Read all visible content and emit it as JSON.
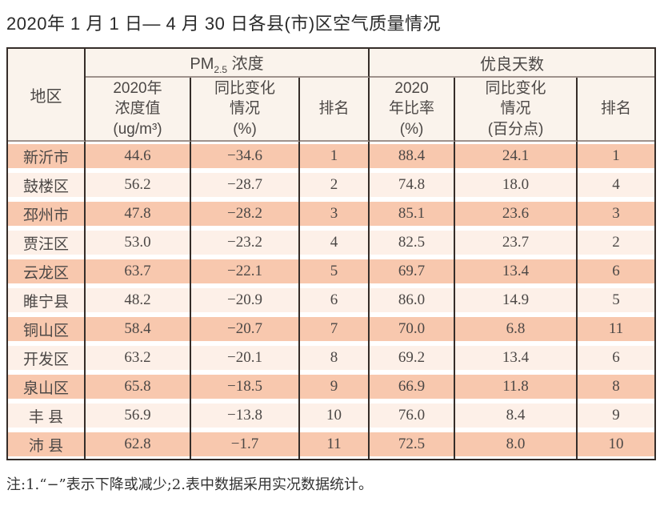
{
  "page": {
    "title": "2020年 1 月 1 日— 4 月 30 日各县(市)区空气质量情况",
    "note": "注:1.“−”表示下降或减少;2.表中数据采用实况数据统计。"
  },
  "colors": {
    "row_odd": "#f8c8ae",
    "row_even": "#fdf0e8",
    "header_bg": "#faf3ec",
    "border_dark": "#352d29",
    "border_gray": "#9e928c",
    "text": "#4c4846",
    "title_text": "#2a2a2a"
  },
  "table": {
    "area_header": "地区",
    "group_pm": {
      "prefix": "PM",
      "sub": "2.5",
      "suffix": " 浓度"
    },
    "group_days": "优良天数",
    "sub_headers": {
      "pm_value": "2020年\n浓度值\n(ug/m³)",
      "pm_change": "同比变化\n情况\n(%)",
      "pm_rank": "排名",
      "days_rate": "2020\n年比率\n(%)",
      "days_change": "同比变化\n情况\n(百分点)",
      "days_rank": "排名"
    }
  },
  "chart_data": {
    "type": "table",
    "title": "2020年 1 月 1 日— 4 月 30 日各县(市)区空气质量情况",
    "column_groups": [
      {
        "label": "地区",
        "span": 1
      },
      {
        "label": "PM2.5浓度",
        "span": 3
      },
      {
        "label": "优良天数",
        "span": 3
      }
    ],
    "columns": [
      "地区",
      "2020年浓度值(ug/m³)",
      "同比变化情况(%)",
      "排名",
      "2020年比率(%)",
      "同比变化情况(百分点)",
      "排名"
    ],
    "rows": [
      [
        "新沂市",
        "44.6",
        "−34.6",
        "1",
        "88.4",
        "24.1",
        "1"
      ],
      [
        "鼓楼区",
        "56.2",
        "−28.7",
        "2",
        "74.8",
        "18.0",
        "4"
      ],
      [
        "邳州市",
        "47.8",
        "−28.2",
        "3",
        "85.1",
        "23.6",
        "3"
      ],
      [
        "贾汪区",
        "53.0",
        "−23.2",
        "4",
        "82.5",
        "23.7",
        "2"
      ],
      [
        "云龙区",
        "63.7",
        "−22.1",
        "5",
        "69.7",
        "13.4",
        "6"
      ],
      [
        "睢宁县",
        "48.2",
        "−20.9",
        "6",
        "86.0",
        "14.9",
        "5"
      ],
      [
        "铜山区",
        "58.4",
        "−20.7",
        "7",
        "70.0",
        "6.8",
        "11"
      ],
      [
        "开发区",
        "63.2",
        "−20.1",
        "8",
        "69.2",
        "13.4",
        "6"
      ],
      [
        "泉山区",
        "65.8",
        "−18.5",
        "9",
        "66.9",
        "11.8",
        "8"
      ],
      [
        "丰 县",
        "56.9",
        "−13.8",
        "10",
        "76.0",
        "8.4",
        "9"
      ],
      [
        "沛 县",
        "62.8",
        "−1.7",
        "11",
        "72.5",
        "8.0",
        "10"
      ]
    ],
    "note": "注:1.“−”表示下降或减少;2.表中数据采用实况数据统计。"
  }
}
